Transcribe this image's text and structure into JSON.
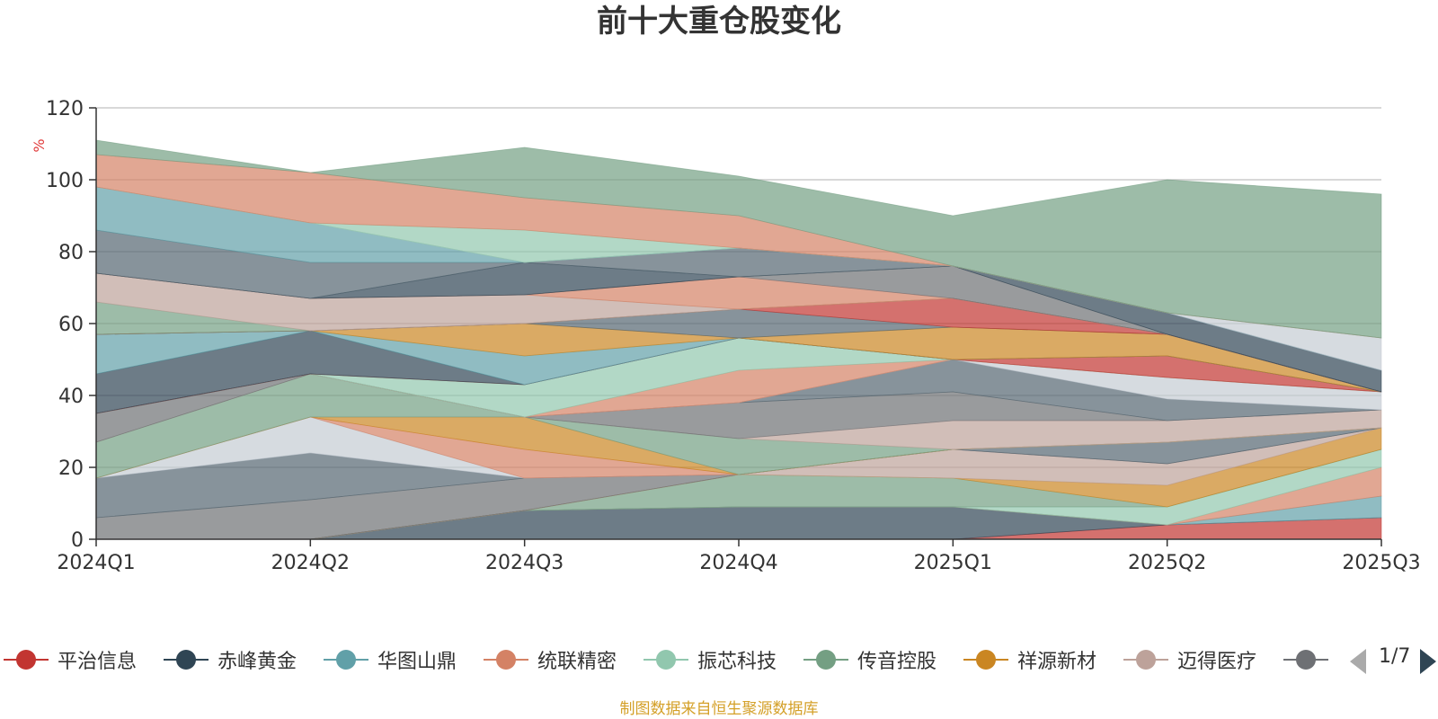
{
  "chart_data": {
    "type": "area",
    "title": "前十大重仓股变化",
    "ylabel": "%",
    "ylim": [
      0,
      120
    ],
    "yticks": [
      0,
      20,
      40,
      60,
      80,
      100,
      120
    ],
    "grid": true,
    "legend_position": "bottom",
    "categories": [
      "2024Q1",
      "2024Q2",
      "2024Q3",
      "2024Q4",
      "2025Q1",
      "2025Q2",
      "2025Q3"
    ],
    "series": [
      {
        "name": "平治信息",
        "color": "#c23531",
        "values": [
          0,
          0,
          0,
          0,
          0,
          4,
          6
        ]
      },
      {
        "name": "赤峰黄金",
        "color": "#2f4554",
        "values": [
          0,
          0,
          8,
          9,
          9,
          0,
          0
        ]
      },
      {
        "name": "华图山鼎",
        "color": "#61a0a8",
        "values": [
          0,
          0,
          0,
          0,
          0,
          0,
          6
        ]
      },
      {
        "name": "统联精密",
        "color": "#d48265",
        "values": [
          0,
          0,
          0,
          0,
          0,
          0,
          8
        ]
      },
      {
        "name": "振芯科技",
        "color": "#91c7ae",
        "values": [
          0,
          0,
          0,
          0,
          0,
          5,
          5
        ]
      },
      {
        "name": "传音控股",
        "color": "#749f83",
        "values": [
          0,
          0,
          0,
          9,
          8,
          0,
          0
        ]
      },
      {
        "name": "祥源新材",
        "color": "#ca8622",
        "values": [
          0,
          0,
          0,
          0,
          0,
          6,
          6
        ]
      },
      {
        "name": "迈得医疗",
        "color": "#bda29a",
        "values": [
          0,
          0,
          0,
          0,
          8,
          6,
          0
        ]
      },
      {
        "name": "",
        "color": "#6e7074",
        "values": [
          6,
          11,
          9,
          0,
          0,
          0,
          0
        ]
      },
      {
        "name": "",
        "color": "#546570",
        "values": [
          11,
          13,
          0,
          0,
          0,
          6,
          0
        ]
      },
      {
        "name": "",
        "color": "#c4ccd3",
        "values": [
          0,
          10,
          0,
          0,
          0,
          0,
          0
        ]
      },
      {
        "name": "",
        "color": "#d48265",
        "values": [
          0,
          0,
          8,
          0,
          0,
          0,
          0
        ]
      },
      {
        "name": "",
        "color": "#ca8622",
        "values": [
          0,
          0,
          9,
          0,
          0,
          0,
          0
        ]
      },
      {
        "name": "",
        "color": "#749f83",
        "values": [
          10,
          12,
          0,
          10,
          0,
          0,
          0
        ]
      },
      {
        "name": "",
        "color": "#bda29a",
        "values": [
          0,
          0,
          0,
          0,
          8,
          6,
          5
        ]
      },
      {
        "name": "",
        "color": "#6e7074",
        "values": [
          8,
          0,
          0,
          10,
          8,
          0,
          0
        ]
      },
      {
        "name": "",
        "color": "#546570",
        "values": [
          0,
          0,
          0,
          0,
          9,
          6,
          0
        ]
      },
      {
        "name": "",
        "color": "#c4ccd3",
        "values": [
          0,
          0,
          0,
          0,
          0,
          6,
          5
        ]
      },
      {
        "name": "",
        "color": "#d48265",
        "values": [
          0,
          0,
          0,
          9,
          0,
          0,
          0
        ]
      },
      {
        "name": "",
        "color": "#91c7ae",
        "values": [
          0,
          0,
          9,
          9,
          0,
          0,
          0
        ]
      },
      {
        "name": "",
        "color": "#c23531",
        "values": [
          0,
          0,
          0,
          0,
          0,
          6,
          0
        ]
      },
      {
        "name": "",
        "color": "#2f4554",
        "values": [
          11,
          12,
          0,
          0,
          0,
          0,
          0
        ]
      },
      {
        "name": "",
        "color": "#61a0a8",
        "values": [
          11,
          0,
          8,
          0,
          0,
          0,
          0
        ]
      },
      {
        "name": "",
        "color": "#ca8622",
        "values": [
          0,
          0,
          9,
          0,
          9,
          6,
          0
        ]
      },
      {
        "name": "",
        "color": "#546570",
        "values": [
          0,
          0,
          0,
          8,
          0,
          0,
          0
        ]
      },
      {
        "name": "",
        "color": "#c23531",
        "values": [
          0,
          0,
          0,
          0,
          8,
          0,
          0
        ]
      },
      {
        "name": "",
        "color": "#749f83",
        "values": [
          9,
          0,
          0,
          0,
          0,
          0,
          0
        ]
      },
      {
        "name": "",
        "color": "#bda29a",
        "values": [
          8,
          9,
          8,
          0,
          0,
          0,
          0
        ]
      },
      {
        "name": "",
        "color": "#d48265",
        "values": [
          0,
          0,
          0,
          9,
          0,
          0,
          0
        ]
      },
      {
        "name": "",
        "color": "#6e7074",
        "values": [
          0,
          0,
          0,
          0,
          9,
          0,
          0
        ]
      },
      {
        "name": "",
        "color": "#2f4554",
        "values": [
          0,
          0,
          9,
          0,
          0,
          6,
          6
        ]
      },
      {
        "name": "",
        "color": "#546570",
        "values": [
          12,
          10,
          0,
          8,
          0,
          0,
          0
        ]
      },
      {
        "name": "",
        "color": "#61a0a8",
        "values": [
          12,
          11,
          0,
          0,
          0,
          0,
          0
        ]
      },
      {
        "name": "",
        "color": "#c4ccd3",
        "values": [
          0,
          0,
          0,
          0,
          0,
          0,
          9
        ]
      },
      {
        "name": "",
        "color": "#91c7ae",
        "values": [
          0,
          0,
          9,
          0,
          0,
          0,
          0
        ]
      },
      {
        "name": "",
        "color": "#d48265",
        "values": [
          9,
          14,
          9,
          9,
          0,
          0,
          0
        ]
      },
      {
        "name": "",
        "color": "#749f83",
        "values": [
          4,
          0,
          14,
          11,
          14,
          37,
          40
        ]
      }
    ]
  },
  "legend": {
    "items": [
      {
        "label": "平治信息",
        "color": "#c23531"
      },
      {
        "label": "赤峰黄金",
        "color": "#2f4554"
      },
      {
        "label": "华图山鼎",
        "color": "#61a0a8"
      },
      {
        "label": "统联精密",
        "color": "#d48265"
      },
      {
        "label": "振芯科技",
        "color": "#91c7ae"
      },
      {
        "label": "传音控股",
        "color": "#749f83"
      },
      {
        "label": "祥源新材",
        "color": "#ca8622"
      },
      {
        "label": "迈得医疗",
        "color": "#bda29a"
      },
      {
        "label": "",
        "color": "#6e7074"
      }
    ],
    "page_indicator": "1/7"
  },
  "source_note": "制图数据来自恒生聚源数据库"
}
